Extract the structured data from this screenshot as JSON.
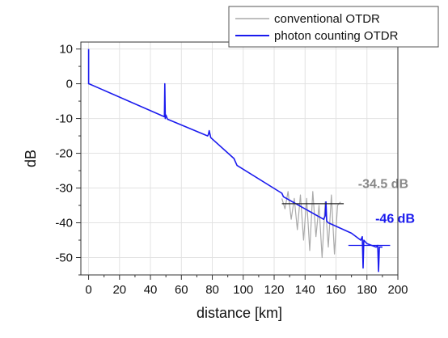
{
  "chart_data": {
    "type": "line",
    "title": "",
    "xlabel": "distance [km]",
    "ylabel": "dB",
    "xlim": [
      -5,
      200
    ],
    "ylim": [
      -55,
      12
    ],
    "x_ticks": [
      0,
      20,
      40,
      60,
      80,
      100,
      120,
      140,
      160,
      180,
      200
    ],
    "x_tick_labels": [
      "0",
      "20",
      "40",
      "60",
      "80",
      "100",
      "120",
      "140",
      "160",
      "180",
      "200"
    ],
    "y_ticks": [
      10,
      0,
      -10,
      -20,
      -30,
      -40,
      -50
    ],
    "y_tick_labels": [
      "10",
      "0",
      "-10",
      "-20",
      "-30",
      "-40",
      "-50"
    ],
    "grid": true,
    "legend_position": "top-right",
    "colors": {
      "conventional": "#aaaaaa",
      "photon": "#1a1aee",
      "annotation_gray": "#888888",
      "annotation_blue": "#1a1aee"
    },
    "series": [
      {
        "name": "conventional OTDR",
        "x": [
          125,
          127,
          129,
          131,
          133,
          135,
          137,
          139,
          141,
          143,
          145,
          147,
          149,
          151,
          153,
          155,
          157,
          159,
          161,
          163
        ],
        "y": [
          -33,
          -36,
          -31,
          -39,
          -33,
          -42,
          -32,
          -45,
          -33,
          -48,
          -31,
          -44,
          -35,
          -50,
          -34,
          -47,
          -32,
          -49,
          -35,
          -34
        ],
        "note": "noisy trace, values spread roughly between -31 and -53 dB from 125 to 163 km"
      },
      {
        "name": "photon counting OTDR",
        "x": [
          0,
          0,
          0.3,
          49,
          49.3,
          49.6,
          50,
          51,
          77,
          77.5,
          78,
          79,
          94,
          96,
          125,
          126,
          152,
          153,
          153.5,
          154,
          155,
          170,
          176,
          177,
          177.5,
          178,
          180,
          186,
          187,
          187.5,
          188,
          190
        ],
        "y": [
          10,
          0,
          0,
          -9.5,
          0,
          -10,
          -9,
          -10.2,
          -15,
          -14.5,
          -13.5,
          -15.5,
          -21.5,
          -23.5,
          -31.5,
          -32.5,
          -39,
          -38,
          -34,
          -39.5,
          -40,
          -43,
          -45,
          -44,
          -53,
          -45,
          -46,
          -47,
          -46.5,
          -54,
          -47,
          -47
        ],
        "note": "mostly linear decay with spikes at ~0, ~49, ~78, ~153 km and noisy tail"
      }
    ],
    "legend": [
      "conventional OTDR",
      "photon counting OTDR"
    ],
    "annotations": [
      {
        "text": "-34.5 dB",
        "y": -34.5,
        "x_start": 125,
        "x_end": 165,
        "color": "#888888"
      },
      {
        "text": "-46 dB",
        "y": -46.5,
        "x_start": 168,
        "x_end": 195,
        "color": "#1a1aee"
      }
    ]
  }
}
